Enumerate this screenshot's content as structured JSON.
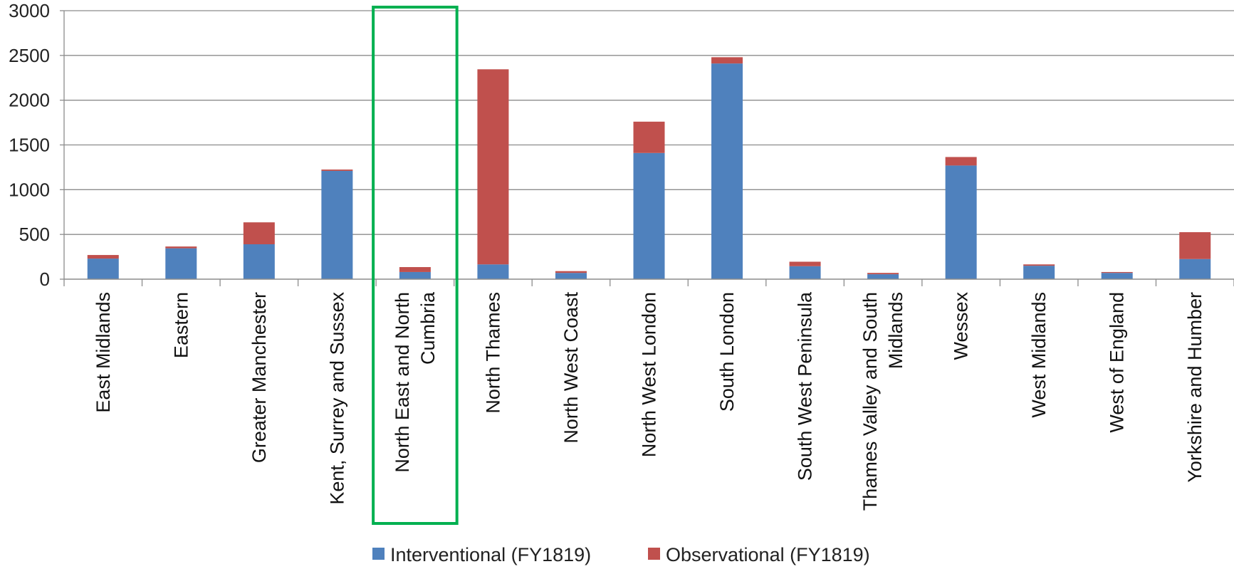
{
  "chart_data": {
    "type": "bar",
    "stacked": true,
    "categories": [
      [
        "East Midlands"
      ],
      [
        "Eastern"
      ],
      [
        "Greater Manchester"
      ],
      [
        "Kent, Surrey and Sussex"
      ],
      [
        "North East and North",
        "Cumbria"
      ],
      [
        "North Thames"
      ],
      [
        "North West Coast"
      ],
      [
        "North West London"
      ],
      [
        "South London"
      ],
      [
        "South West Peninsula"
      ],
      [
        "Thames Valley and South",
        "Midlands"
      ],
      [
        "Wessex"
      ],
      [
        "West Midlands"
      ],
      [
        "West of England"
      ],
      [
        "Yorkshire and Humber"
      ]
    ],
    "series": [
      {
        "name": "Interventional (FY1819)",
        "color": "#4f81bd",
        "values": [
          230,
          345,
          390,
          1210,
          80,
          165,
          70,
          1410,
          2410,
          145,
          55,
          1270,
          150,
          70,
          225
        ]
      },
      {
        "name": "Observational (FY1819)",
        "color": "#c0504d",
        "values": [
          40,
          20,
          245,
          15,
          55,
          2180,
          20,
          350,
          70,
          50,
          15,
          95,
          15,
          10,
          300
        ]
      }
    ],
    "ylim": [
      0,
      3000
    ],
    "yticks": [
      "0",
      "500",
      "1000",
      "1500",
      "2000",
      "2500",
      "3000"
    ],
    "grid": true,
    "legend_position": "bottom",
    "highlight": {
      "category_index": 4,
      "color": "#00b050"
    }
  }
}
